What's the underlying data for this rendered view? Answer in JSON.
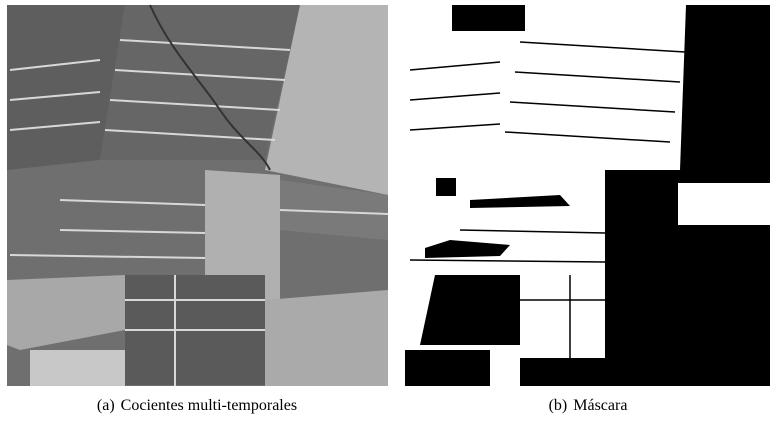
{
  "figure": {
    "panels": [
      {
        "label": "(a)",
        "caption": "Cocientes multi-temporales"
      },
      {
        "label": "(b)",
        "caption": "Máscara"
      }
    ]
  }
}
